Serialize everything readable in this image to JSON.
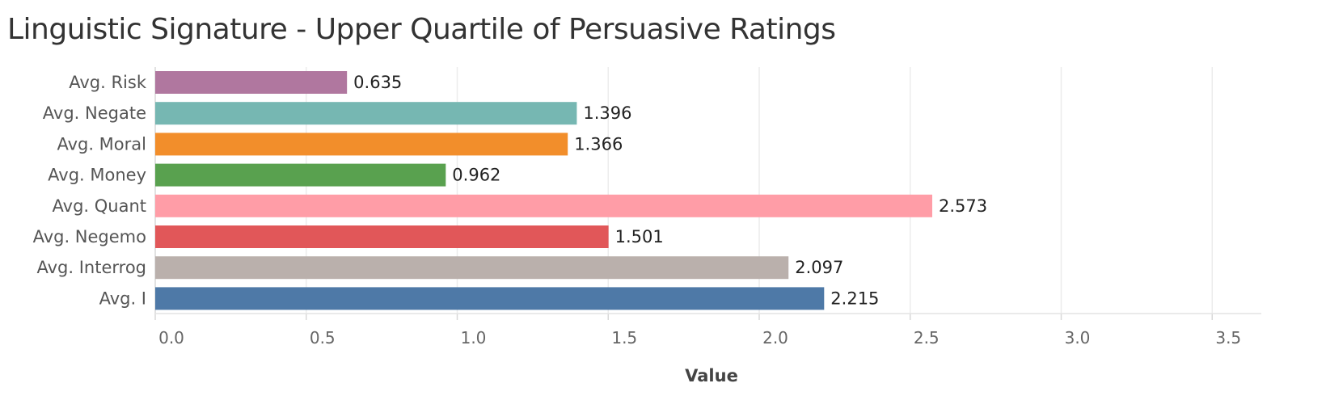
{
  "chart_data": {
    "type": "bar",
    "orientation": "horizontal",
    "title": "Linguistic Signature - Upper Quartile of Persuasive Ratings",
    "xlabel": "Value",
    "ylabel": "",
    "xlim": [
      0,
      3.6
    ],
    "ticks": [
      "0.0",
      "0.5",
      "1.0",
      "1.5",
      "2.0",
      "2.5",
      "3.0",
      "3.5"
    ],
    "tick_values": [
      0.0,
      0.5,
      1.0,
      1.5,
      2.0,
      2.5,
      3.0,
      3.5
    ],
    "grid": true,
    "categories": [
      "Avg. Risk",
      "Avg. Negate",
      "Avg. Moral",
      "Avg. Money",
      "Avg. Quant",
      "Avg. Negemo",
      "Avg. Interrog",
      "Avg. I"
    ],
    "values": [
      0.635,
      1.396,
      1.366,
      0.962,
      2.573,
      1.501,
      2.097,
      2.215
    ],
    "value_labels": [
      "0.635",
      "1.396",
      "1.366",
      "0.962",
      "2.573",
      "1.501",
      "2.097",
      "2.215"
    ],
    "colors": [
      "#b0779f",
      "#76b7b2",
      "#f28e2b",
      "#59a14f",
      "#ff9da7",
      "#e15759",
      "#bab0ac",
      "#4e79a7"
    ]
  }
}
